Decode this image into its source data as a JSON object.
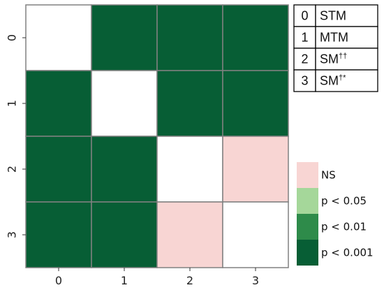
{
  "chart_data": {
    "type": "heatmap",
    "rows": [
      "0",
      "1",
      "2",
      "3"
    ],
    "cols": [
      "0",
      "1",
      "2",
      "3"
    ],
    "x_ticks": [
      "0",
      "1",
      "2",
      "3"
    ],
    "y_ticks": [
      "0",
      "1",
      "2",
      "3"
    ],
    "matrix": [
      [
        null,
        "p < 0.001",
        "p < 0.001",
        "p < 0.001"
      ],
      [
        "p < 0.001",
        null,
        "p < 0.001",
        "p < 0.001"
      ],
      [
        "p < 0.001",
        "p < 0.001",
        null,
        "NS"
      ],
      [
        "p < 0.001",
        "p < 0.001",
        "NS",
        null
      ]
    ],
    "legend": [
      {
        "label": "NS",
        "color": "#f8d5d3"
      },
      {
        "label": "p < 0.05",
        "color": "#a5d79a"
      },
      {
        "label": "p < 0.01",
        "color": "#2e8b4a"
      },
      {
        "label": "p < 0.001",
        "color": "#075e35"
      }
    ],
    "diagonal_color": "#ffffff",
    "key_table": [
      {
        "index": "0",
        "base": "STM",
        "sup": ""
      },
      {
        "index": "1",
        "base": "MTM",
        "sup": ""
      },
      {
        "index": "2",
        "base": "SM",
        "sup": "††"
      },
      {
        "index": "3",
        "base": "SM",
        "sup": "†*"
      }
    ],
    "title": "",
    "xlabel": "",
    "ylabel": ""
  }
}
